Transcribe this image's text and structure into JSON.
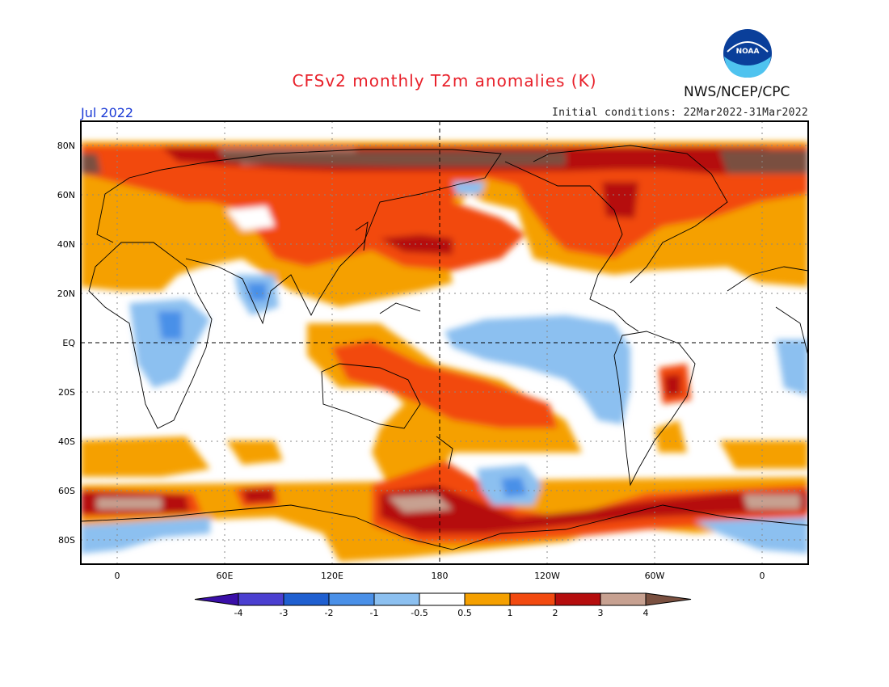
{
  "header": {
    "title": "CFSv2 monthly T2m anomalies (K)",
    "agency": "NWS/NCEP/CPC",
    "logo_text": "NOAA",
    "month": "Jul 2022",
    "initial_conditions": "Initial conditions: 22Mar2022-31Mar2022"
  },
  "axes": {
    "lat_labels": [
      "80N",
      "60N",
      "40N",
      "20N",
      "EQ",
      "20S",
      "40S",
      "60S",
      "80S"
    ],
    "lon_labels": [
      "0",
      "60E",
      "120E",
      "180",
      "120W",
      "60W",
      "0"
    ]
  },
  "colorbar": {
    "labels": [
      "-4",
      "-3",
      "-2",
      "-1",
      "-0.5",
      "0.5",
      "1",
      "2",
      "3",
      "4"
    ],
    "colors": [
      "#3a0fa8",
      "#4b3fd0",
      "#1f5fd0",
      "#4a90e8",
      "#8cc0f0",
      "#ffffff",
      "#f5a000",
      "#f24a10",
      "#b50d0d",
      "#c7a191",
      "#7a5040"
    ]
  }
}
